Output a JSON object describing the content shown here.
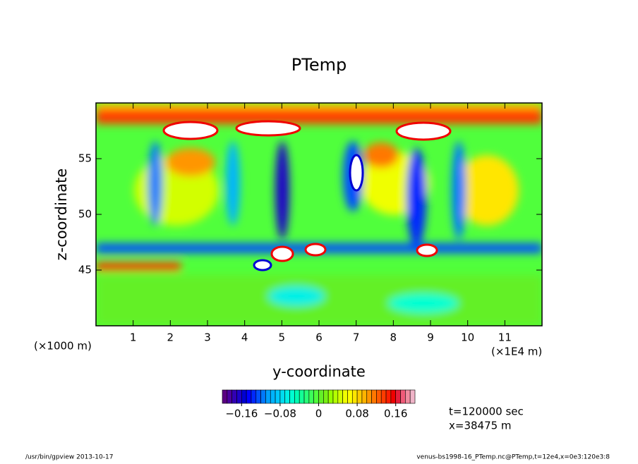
{
  "chart_data": {
    "type": "contour",
    "title": "PTemp",
    "x_label": "y-coordinate",
    "y_label": "z-coordinate",
    "x_unit_left": "(×1000 m)",
    "x_unit_right": "(×1E4 m)",
    "xlim": [
      0,
      12
    ],
    "xticks": [
      1,
      2,
      3,
      4,
      5,
      6,
      7,
      8,
      9,
      10,
      11
    ],
    "ylim": [
      40,
      60
    ],
    "yticks": [
      45,
      50,
      55
    ],
    "colorbar": {
      "clim": [
        -0.2,
        0.2
      ],
      "ticks": [
        {
          "value": -0.16,
          "label": "−0.16"
        },
        {
          "value": -0.08,
          "label": "−0.08"
        },
        0,
        0.08,
        0.16
      ],
      "colors": [
        "#5a0082",
        "#4b00a0",
        "#3200b4",
        "#1e00c8",
        "#0000d2",
        "#0000ff",
        "#0028ff",
        "#0050ff",
        "#0078ff",
        "#00a0ff",
        "#00b4ff",
        "#00c8ff",
        "#00dcf0",
        "#00f0e6",
        "#00ffd2",
        "#00ffb4",
        "#14ff96",
        "#28ff78",
        "#3cff5a",
        "#50ff3c",
        "#64f028",
        "#78f014",
        "#96ff00",
        "#b4ff00",
        "#d2ff00",
        "#f0ff00",
        "#ffff00",
        "#ffe600",
        "#ffcc00",
        "#ffb400",
        "#ff9600",
        "#ff7800",
        "#ff5a00",
        "#ff3c00",
        "#ff1e00",
        "#f00000",
        "#e61e3c",
        "#f05a78",
        "#f08ca0",
        "#f0b4c8"
      ]
    },
    "annotations": [
      "t=120000 sec",
      "x=38475 m"
    ],
    "footer_left": "/usr/bin/gpview   2013-10-17",
    "footer_right": "venus-bs1998-16_PTemp.nc@PTemp,t=12e4,x=0e3:120e3:8"
  }
}
